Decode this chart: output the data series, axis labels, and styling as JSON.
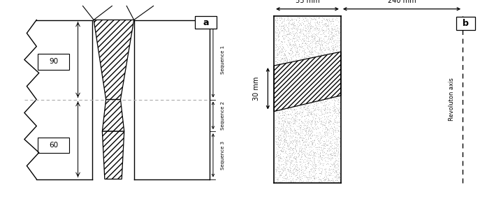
{
  "fig_width": 6.97,
  "fig_height": 2.85,
  "dpi": 100,
  "bg_color": "#ffffff",
  "label_a": "a",
  "label_b": "b",
  "label_90": "90",
  "label_60": "60",
  "seq1": "Sequence 1",
  "seq2": "Sequence 2",
  "seq3": "Sequence 3",
  "dim_55": "55 mm",
  "dim_240": "240 mm",
  "dim_30": "30 mm",
  "rev_axis": "Revoluton axis",
  "line_color": "#000000",
  "dotted_color": "#aaaaaa",
  "stipple_color": "#bbbbbb"
}
